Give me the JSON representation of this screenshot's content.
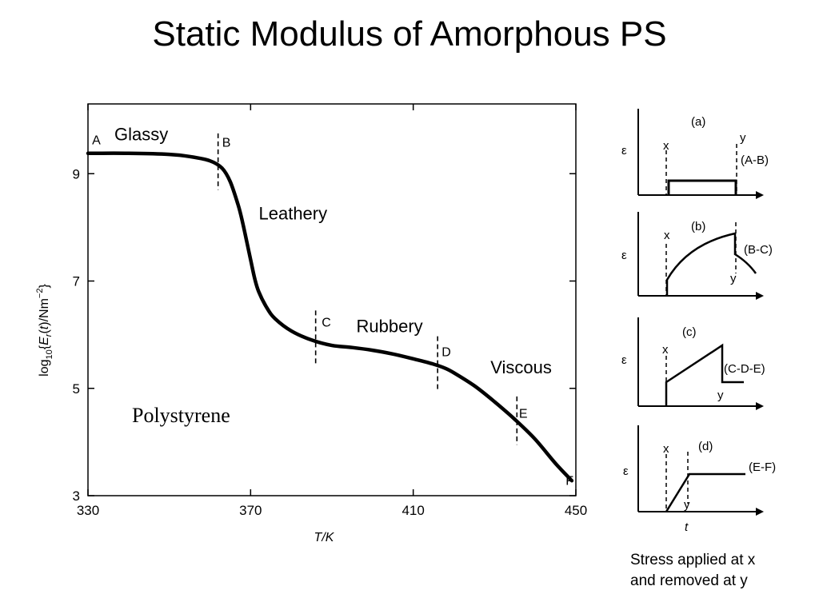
{
  "slide": {
    "title": "Static Modulus of Amorphous PS",
    "caption": "Stress applied at x\nand removed at y"
  },
  "chart_data": [
    {
      "type": "line",
      "title": "",
      "annotation": "Polystyrene",
      "xlabel": "T/K",
      "ylabel": "log10{Er(t)/Nm-2}",
      "xlim": [
        330,
        450
      ],
      "ylim": [
        3,
        10.3
      ],
      "xticks": [
        330,
        370,
        410,
        450
      ],
      "yticks": [
        3,
        5,
        7,
        9
      ],
      "grid": false,
      "x": [
        330,
        340,
        350,
        355,
        360,
        363,
        365,
        367,
        368,
        369,
        370,
        371,
        372,
        374,
        376,
        380,
        385,
        390,
        395,
        400,
        405,
        410,
        415,
        418,
        420,
        425,
        430,
        435,
        440,
        445,
        449
      ],
      "values": [
        9.38,
        9.38,
        9.36,
        9.32,
        9.24,
        9.1,
        8.85,
        8.4,
        8.1,
        7.75,
        7.4,
        7.05,
        6.8,
        6.5,
        6.3,
        6.07,
        5.9,
        5.8,
        5.76,
        5.71,
        5.64,
        5.55,
        5.45,
        5.37,
        5.29,
        5.05,
        4.75,
        4.42,
        4.05,
        3.6,
        3.28
      ],
      "region_labels": [
        {
          "text": "Glassy",
          "x": 336.5,
          "y": 9.62
        },
        {
          "text": "Leathery",
          "x": 372.0,
          "y": 8.15
        },
        {
          "text": "Rubbery",
          "x": 396.0,
          "y": 6.05
        },
        {
          "text": "Viscous",
          "x": 429.0,
          "y": 5.28
        }
      ],
      "transition_points": [
        {
          "label": "A",
          "x": 331.0,
          "y": 9.55
        },
        {
          "label": "B",
          "x": 363.0,
          "y": 9.5,
          "marker": [
            8.7,
            9.75
          ]
        },
        {
          "label": "C",
          "x": 387.5,
          "y": 6.15,
          "marker": [
            5.45,
            6.45
          ]
        },
        {
          "label": "D",
          "x": 417.0,
          "y": 5.6,
          "marker": [
            4.95,
            5.97
          ]
        },
        {
          "label": "E",
          "x": 436.0,
          "y": 4.45,
          "marker": [
            3.95,
            4.85
          ]
        },
        {
          "label": "F",
          "x": 447.5,
          "y": 3.2
        }
      ]
    }
  ],
  "insets": [
    {
      "tag": "(a)",
      "range": "(A-B)",
      "ylabel": "ε",
      "x_label": "x",
      "y_label": "y",
      "response": "flat"
    },
    {
      "tag": "(b)",
      "range": "(B-C)",
      "ylabel": "ε",
      "x_label": "x",
      "y_label": "y",
      "response": "rising-curve"
    },
    {
      "tag": "(c)",
      "range": "(C-D-E)",
      "ylabel": "ε",
      "x_label": "x",
      "y_label": "y",
      "response": "linear-ramp"
    },
    {
      "tag": "(d)",
      "range": "(E-F)",
      "ylabel": "ε",
      "x_label": "x",
      "y_label": "y",
      "t_label": "t",
      "response": "ramp-plateau"
    }
  ]
}
